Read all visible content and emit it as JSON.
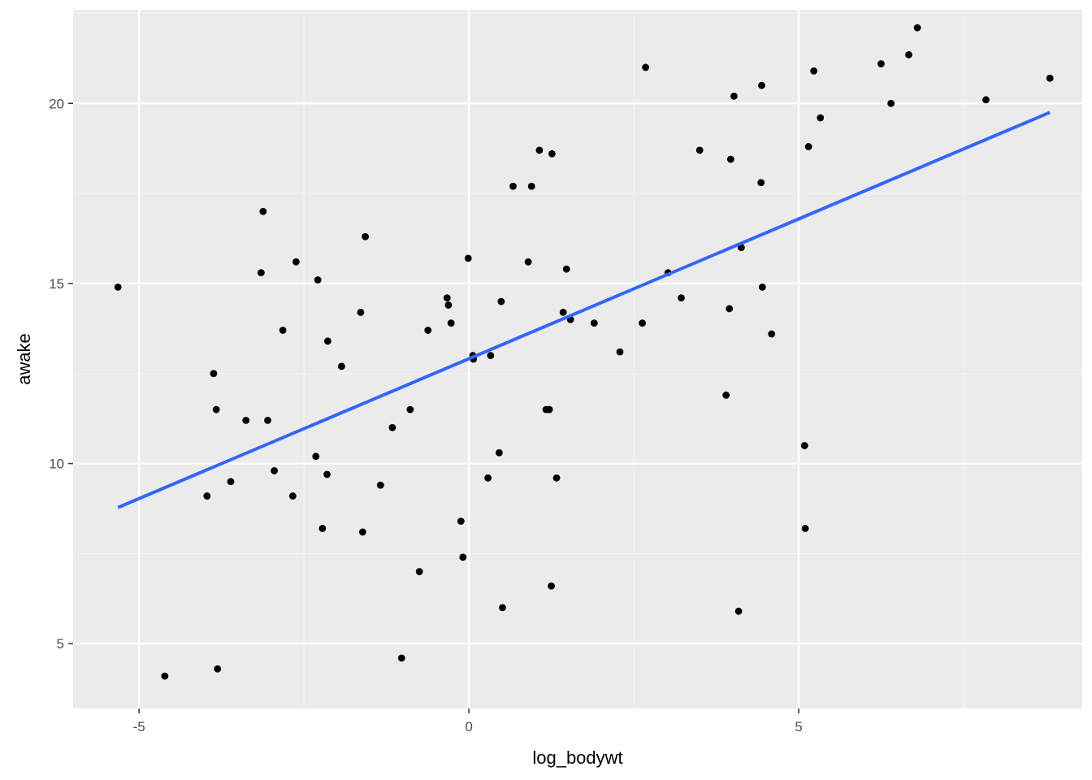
{
  "chart_data": {
    "type": "scatter",
    "title": "",
    "xlabel": "log_bodywt",
    "ylabel": "awake",
    "xlim": [
      -6.0,
      9.3
    ],
    "ylim": [
      3.2,
      22.6
    ],
    "x_ticks": [
      -5,
      0,
      5
    ],
    "x_tick_labels": [
      "-5",
      "0",
      "5"
    ],
    "y_ticks": [
      5,
      10,
      15,
      20
    ],
    "y_tick_labels": [
      "5",
      "10",
      "15",
      "20"
    ],
    "grid": true,
    "legend": "none",
    "colors": {
      "panel_bg": "#ebebeb",
      "grid_major": "#ffffff",
      "grid_minor": "#f5f5f5",
      "point": "#000000",
      "fit_line": "#3366ff"
    },
    "points": [
      {
        "x": -5.32,
        "y": 14.9
      },
      {
        "x": -4.61,
        "y": 4.1
      },
      {
        "x": -3.97,
        "y": 9.1
      },
      {
        "x": -3.87,
        "y": 12.5
      },
      {
        "x": -3.83,
        "y": 11.5
      },
      {
        "x": -3.81,
        "y": 4.3
      },
      {
        "x": -3.61,
        "y": 9.5
      },
      {
        "x": -3.38,
        "y": 11.2
      },
      {
        "x": -3.15,
        "y": 15.3
      },
      {
        "x": -3.12,
        "y": 17.0
      },
      {
        "x": -3.05,
        "y": 11.2
      },
      {
        "x": -2.95,
        "y": 9.8
      },
      {
        "x": -2.82,
        "y": 13.7
      },
      {
        "x": -2.67,
        "y": 9.1
      },
      {
        "x": -2.62,
        "y": 15.6
      },
      {
        "x": -2.32,
        "y": 10.2
      },
      {
        "x": -2.29,
        "y": 15.1
      },
      {
        "x": -2.22,
        "y": 8.2
      },
      {
        "x": -2.15,
        "y": 9.7
      },
      {
        "x": -2.14,
        "y": 13.4
      },
      {
        "x": -1.93,
        "y": 12.7
      },
      {
        "x": -1.64,
        "y": 14.2
      },
      {
        "x": -1.61,
        "y": 8.1
      },
      {
        "x": -1.57,
        "y": 16.3
      },
      {
        "x": -1.34,
        "y": 9.4
      },
      {
        "x": -1.16,
        "y": 11.0
      },
      {
        "x": -1.02,
        "y": 4.6
      },
      {
        "x": -0.89,
        "y": 11.5
      },
      {
        "x": -0.75,
        "y": 7.0
      },
      {
        "x": -0.62,
        "y": 13.7
      },
      {
        "x": -0.33,
        "y": 14.6
      },
      {
        "x": -0.31,
        "y": 14.4
      },
      {
        "x": -0.27,
        "y": 13.9
      },
      {
        "x": -0.12,
        "y": 8.4
      },
      {
        "x": -0.09,
        "y": 7.4
      },
      {
        "x": -0.01,
        "y": 15.7
      },
      {
        "x": 0.06,
        "y": 13.0
      },
      {
        "x": 0.07,
        "y": 12.9
      },
      {
        "x": 0.29,
        "y": 9.6
      },
      {
        "x": 0.33,
        "y": 13.0
      },
      {
        "x": 0.46,
        "y": 10.3
      },
      {
        "x": 0.49,
        "y": 14.5
      },
      {
        "x": 0.51,
        "y": 6.0
      },
      {
        "x": 0.67,
        "y": 17.7
      },
      {
        "x": 0.9,
        "y": 15.6
      },
      {
        "x": 0.95,
        "y": 17.7
      },
      {
        "x": 1.07,
        "y": 18.7
      },
      {
        "x": 1.17,
        "y": 11.5
      },
      {
        "x": 1.22,
        "y": 11.5
      },
      {
        "x": 1.25,
        "y": 6.6
      },
      {
        "x": 1.26,
        "y": 18.6
      },
      {
        "x": 1.33,
        "y": 9.6
      },
      {
        "x": 1.43,
        "y": 14.2
      },
      {
        "x": 1.48,
        "y": 15.4
      },
      {
        "x": 1.54,
        "y": 14.0
      },
      {
        "x": 1.9,
        "y": 13.9
      },
      {
        "x": 2.29,
        "y": 13.1
      },
      {
        "x": 2.63,
        "y": 13.9
      },
      {
        "x": 2.68,
        "y": 21.0
      },
      {
        "x": 3.02,
        "y": 15.3
      },
      {
        "x": 3.22,
        "y": 14.6
      },
      {
        "x": 3.5,
        "y": 18.7
      },
      {
        "x": 3.9,
        "y": 11.9
      },
      {
        "x": 3.95,
        "y": 14.3
      },
      {
        "x": 3.97,
        "y": 18.45
      },
      {
        "x": 4.02,
        "y": 20.2
      },
      {
        "x": 4.09,
        "y": 5.9
      },
      {
        "x": 4.13,
        "y": 16.0
      },
      {
        "x": 4.43,
        "y": 17.8
      },
      {
        "x": 4.44,
        "y": 20.5
      },
      {
        "x": 4.45,
        "y": 14.9
      },
      {
        "x": 4.59,
        "y": 13.6
      },
      {
        "x": 5.09,
        "y": 10.5
      },
      {
        "x": 5.1,
        "y": 8.2
      },
      {
        "x": 5.15,
        "y": 18.8
      },
      {
        "x": 5.23,
        "y": 20.9
      },
      {
        "x": 5.33,
        "y": 19.6
      },
      {
        "x": 6.25,
        "y": 21.1
      },
      {
        "x": 6.4,
        "y": 20.0
      },
      {
        "x": 6.67,
        "y": 21.35
      },
      {
        "x": 6.8,
        "y": 22.1
      },
      {
        "x": 7.84,
        "y": 20.1
      },
      {
        "x": 8.81,
        "y": 20.7
      }
    ],
    "fit_line": {
      "method": "lm",
      "x": [
        -5.32,
        8.81
      ],
      "y": [
        8.78,
        19.75
      ]
    }
  }
}
